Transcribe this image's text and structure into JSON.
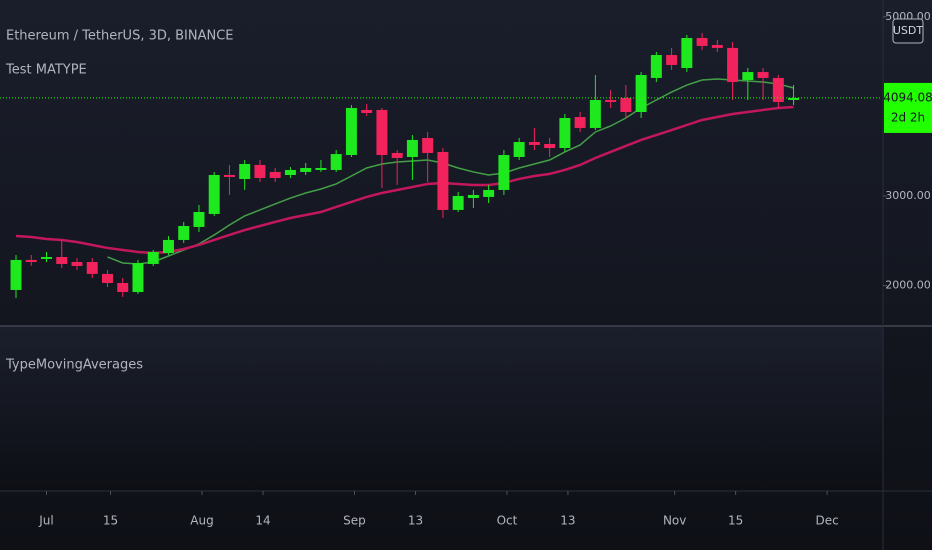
{
  "chart_data": {
    "type": "candlestick",
    "title": "Ethereum / TetherUS, 3D, BINANCE",
    "indicator": "Test MATYPE",
    "lower_pane_title": "TypeMovingAverages",
    "currency": "USDT",
    "up_color": "#1ee81e",
    "down_color": "#f2225c",
    "open": [
      1951,
      2286,
      2297,
      2319,
      2263,
      2263,
      2130,
      2029,
      1928,
      2241,
      2363,
      2509,
      2654,
      2799,
      3234,
      3189,
      3346,
      3268,
      3234,
      3268,
      3290,
      3290,
      3457,
      3960,
      3960,
      3480,
      3435,
      3647,
      3491,
      2844,
      2977,
      2989,
      3067,
      3435,
      3602,
      3580,
      3535,
      3881,
      3759,
      4071,
      4094,
      3937,
      4317,
      4573,
      4428,
      4763,
      4685,
      4652,
      4294,
      4383,
      4317,
      4071
    ],
    "high": [
      2341,
      2341,
      2375,
      2509,
      2308,
      2308,
      2174,
      2085,
      2286,
      2397,
      2553,
      2710,
      2899,
      3268,
      3346,
      3401,
      3401,
      3312,
      3323,
      3368,
      3401,
      3513,
      4015,
      4026,
      3982,
      3513,
      3680,
      3714,
      3535,
      3045,
      3067,
      3123,
      3513,
      3647,
      3759,
      3647,
      3915,
      3937,
      4350,
      4183,
      4238,
      4383,
      4607,
      4652,
      4797,
      4819,
      4741,
      4718,
      4428,
      4428,
      4350,
      4238
    ],
    "low": [
      1861,
      2219,
      2263,
      2196,
      2174,
      2085,
      1984,
      1873,
      1906,
      2219,
      2341,
      2475,
      2598,
      2777,
      3011,
      3067,
      3156,
      3156,
      3201,
      3234,
      3268,
      3268,
      3435,
      3893,
      3089,
      3123,
      3178,
      3156,
      2754,
      2821,
      2866,
      2921,
      3011,
      3401,
      3513,
      3435,
      3491,
      3714,
      3736,
      3982,
      3870,
      3870,
      4272,
      4406,
      4383,
      4629,
      4607,
      4071,
      4071,
      4071,
      3982,
      4015
    ],
    "close": [
      2286,
      2263,
      2319,
      2241,
      2219,
      2130,
      2029,
      1928,
      2252,
      2375,
      2509,
      2665,
      2821,
      3234,
      3212,
      3357,
      3201,
      3201,
      3290,
      3312,
      3312,
      3468,
      3982,
      3926,
      3457,
      3424,
      3625,
      3480,
      2844,
      3000,
      3011,
      3067,
      3457,
      3602,
      3569,
      3535,
      3870,
      3759,
      4071,
      4049,
      3937,
      4350,
      4573,
      4462,
      4763,
      4674,
      4652,
      4272,
      4383,
      4317,
      4049,
      4094.08
    ],
    "series": [
      {
        "color": "#43a047",
        "values": [
          null,
          null,
          null,
          null,
          null,
          null,
          2319,
          2252,
          2241,
          2263,
          2330,
          2397,
          2464,
          2565,
          2676,
          2777,
          2844,
          2911,
          2977,
          3033,
          3078,
          3134,
          3223,
          3312,
          3357,
          3379,
          3390,
          3401,
          3368,
          3312,
          3268,
          3234,
          3256,
          3312,
          3357,
          3401,
          3491,
          3569,
          3714,
          3781,
          3870,
          3982,
          4071,
          4160,
          4238,
          4294,
          4305,
          4294,
          4283,
          4272,
          4250,
          4205
        ]
      },
      {
        "color": "#c2185b",
        "values": [
          2553,
          2542,
          2520,
          2509,
          2486,
          2453,
          2420,
          2397,
          2375,
          2363,
          2375,
          2408,
          2453,
          2509,
          2565,
          2620,
          2665,
          2710,
          2754,
          2788,
          2821,
          2877,
          2933,
          2989,
          3033,
          3067,
          3100,
          3134,
          3145,
          3134,
          3123,
          3123,
          3145,
          3190,
          3223,
          3246,
          3290,
          3346,
          3424,
          3491,
          3558,
          3625,
          3680,
          3736,
          3792,
          3848,
          3881,
          3915,
          3937,
          3960,
          3982,
          3993
        ]
      }
    ],
    "price_label": {
      "value": 4094.08,
      "countdown": "2d 2h",
      "color": "#22ff00"
    },
    "ylim": [
      1560,
      5187
    ],
    "yticks": [
      {
        "value": 2000,
        "label": "2000.00"
      },
      {
        "value": 3000,
        "label": "3000.00"
      },
      {
        "value": 5000,
        "label": "5000.00"
      }
    ],
    "xlim": [
      -1.05,
      56.8
    ],
    "xticks": [
      {
        "value": 2,
        "label": "Jul"
      },
      {
        "value": 6.2,
        "label": "15"
      },
      {
        "value": 12.2,
        "label": "Aug"
      },
      {
        "value": 16.2,
        "label": "14"
      },
      {
        "value": 22.2,
        "label": "Sep"
      },
      {
        "value": 26.2,
        "label": "13"
      },
      {
        "value": 32.2,
        "label": "Oct"
      },
      {
        "value": 36.2,
        "label": "13"
      },
      {
        "value": 43.2,
        "label": "Nov"
      },
      {
        "value": 47.2,
        "label": "15"
      },
      {
        "value": 53.2,
        "label": "Dec"
      }
    ]
  }
}
